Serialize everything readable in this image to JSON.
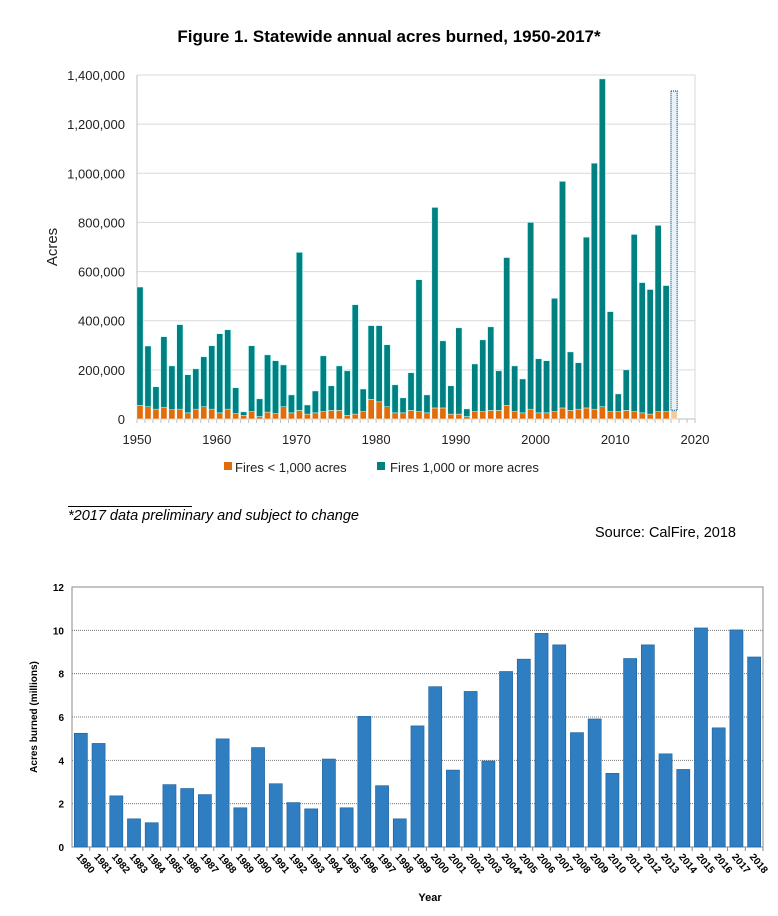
{
  "chart_data": [
    {
      "type": "bar",
      "stacked": true,
      "title": "Figure 1. Statewide annual acres burned, 1950-2017*",
      "xlabel": "",
      "ylabel": "Acres",
      "xlim": [
        1950,
        2020
      ],
      "ylim": [
        0,
        1400000
      ],
      "xticks": [
        "1950",
        "1960",
        "1970",
        "1980",
        "1990",
        "2000",
        "2010",
        "2020"
      ],
      "yticks": [
        "0",
        "200,000",
        "400,000",
        "600,000",
        "800,000",
        "1,000,000",
        "1,200,000",
        "1,400,000"
      ],
      "grid": true,
      "legend": "bottom",
      "preliminary_year": 2017,
      "colors": {
        "small": "#e36c0a",
        "large": "#008080",
        "preliminary": "#1f77b4"
      },
      "x": [
        1950,
        1951,
        1952,
        1953,
        1954,
        1955,
        1956,
        1957,
        1958,
        1959,
        1960,
        1961,
        1962,
        1963,
        1964,
        1965,
        1966,
        1967,
        1968,
        1969,
        1970,
        1971,
        1972,
        1973,
        1974,
        1975,
        1976,
        1977,
        1978,
        1979,
        1980,
        1981,
        1982,
        1983,
        1984,
        1985,
        1986,
        1987,
        1988,
        1989,
        1990,
        1991,
        1992,
        1993,
        1994,
        1995,
        1996,
        1997,
        1998,
        1999,
        2000,
        2001,
        2002,
        2003,
        2004,
        2005,
        2006,
        2007,
        2008,
        2009,
        2010,
        2011,
        2012,
        2013,
        2014,
        2015,
        2016,
        2017
      ],
      "series": [
        {
          "name": "Fires < 1,000 acres",
          "values": [
            55000,
            50000,
            40000,
            48000,
            38000,
            40000,
            25000,
            40000,
            50000,
            40000,
            25000,
            40000,
            22000,
            15000,
            30000,
            10000,
            28000,
            22000,
            50000,
            25000,
            35000,
            20000,
            25000,
            30000,
            35000,
            35000,
            15000,
            20000,
            30000,
            80000,
            70000,
            50000,
            25000,
            25000,
            35000,
            30000,
            25000,
            45000,
            45000,
            20000,
            20000,
            10000,
            30000,
            30000,
            35000,
            35000,
            55000,
            30000,
            25000,
            40000,
            25000,
            25000,
            30000,
            45000,
            35000,
            40000,
            45000,
            40000,
            50000,
            30000,
            30000,
            35000,
            30000,
            25000,
            20000,
            30000,
            30000,
            35000
          ]
        },
        {
          "name": "Fires  1,000 or more acres",
          "values": [
            482000,
            247000,
            91000,
            287000,
            178000,
            344000,
            155000,
            164000,
            203000,
            258000,
            322000,
            323000,
            105000,
            14000,
            268000,
            72000,
            233000,
            215000,
            170000,
            73000,
            643000,
            37000,
            89000,
            227000,
            100000,
            181000,
            181000,
            445000,
            92000,
            300000,
            310000,
            252000,
            114000,
            61000,
            153000,
            537000,
            73000,
            816000,
            273000,
            115000,
            351000,
            31000,
            194000,
            292000,
            340000,
            161000,
            602000,
            186000,
            138000,
            760000,
            220000,
            212000,
            461000,
            922000,
            238000,
            189000,
            695000,
            1001000,
            1334000,
            407000,
            72000,
            165000,
            721000,
            530000,
            507000,
            758000,
            513000,
            1300000
          ]
        }
      ]
    },
    {
      "type": "bar",
      "title": "",
      "xlabel": "Year",
      "ylabel": "Acres burned (millions)",
      "ylim": [
        0,
        12
      ],
      "yticks": [
        "0",
        "2",
        "4",
        "6",
        "8",
        "10",
        "12"
      ],
      "grid": true,
      "color": "#2e7ec1",
      "categories": [
        "1980",
        "1981",
        "1982",
        "1983",
        "1984",
        "1985",
        "1986",
        "1987",
        "1988",
        "1989",
        "1990",
        "1991",
        "1992",
        "1993",
        "1994",
        "1995",
        "1996",
        "1997",
        "1998",
        "1999",
        "2000",
        "2001",
        "2002",
        "2003",
        "2004*",
        "2005",
        "2006",
        "2007",
        "2008",
        "2009",
        "2010",
        "2011",
        "2012",
        "2013",
        "2014",
        "2015",
        "2016",
        "2017",
        "2018"
      ],
      "values": [
        5.25,
        4.78,
        2.36,
        1.3,
        1.12,
        2.88,
        2.7,
        2.42,
        4.99,
        1.81,
        4.59,
        2.92,
        2.05,
        1.76,
        4.06,
        1.81,
        6.03,
        2.83,
        1.3,
        5.59,
        7.4,
        3.55,
        7.18,
        3.97,
        8.1,
        8.67,
        9.86,
        9.33,
        5.28,
        5.91,
        3.4,
        8.7,
        9.33,
        4.3,
        3.58,
        10.11,
        5.5,
        10.02,
        8.77
      ]
    }
  ],
  "footnote": "*2017 data preliminary and subject to change",
  "source": "Source: CalFire, 2018"
}
